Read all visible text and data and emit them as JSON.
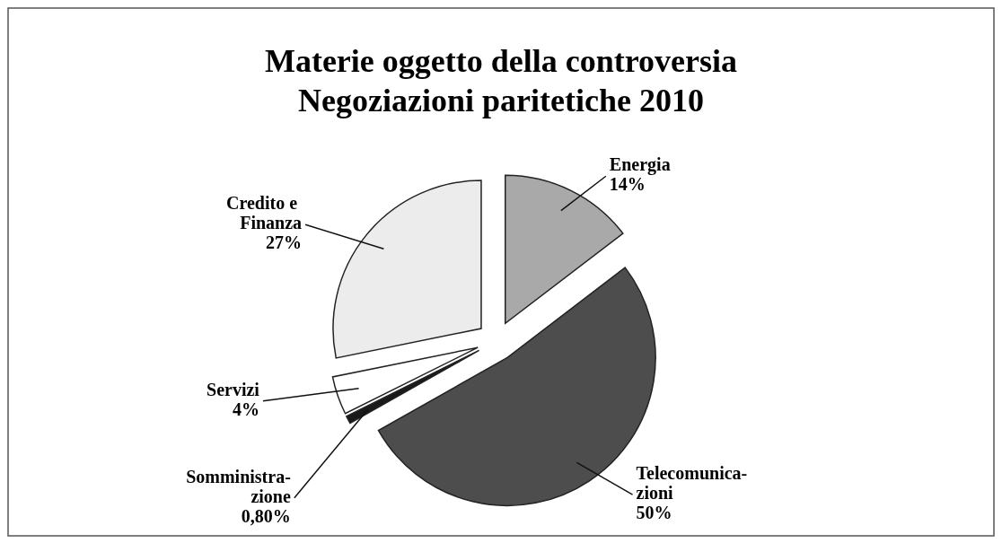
{
  "chart_data": {
    "type": "pie",
    "title": "Materie oggetto della controversia\nNegoziazioni paritetiche 2010",
    "categories": [
      "Energia",
      "Telecomunica-zioni",
      "Somministra-zione",
      "Servizi",
      "Credito e Finanza"
    ],
    "values": [
      14,
      50,
      0.8,
      4,
      27
    ],
    "value_labels": [
      "14%",
      "50%",
      "0,80%",
      "4%",
      "27%"
    ],
    "colors": [
      "#a9a9a9",
      "#4d4d4d",
      "#1a1a1a",
      "#ffffff",
      "#ececec"
    ]
  }
}
